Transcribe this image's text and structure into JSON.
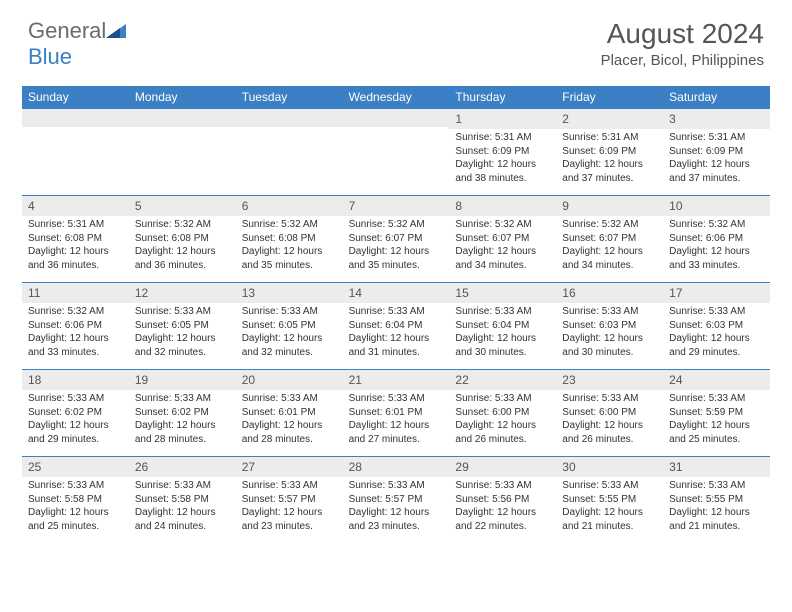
{
  "logo": {
    "text_a": "General",
    "text_b": "Blue"
  },
  "title": "August 2024",
  "location": "Placer, Bicol, Philippines",
  "colors": {
    "header_bg": "#3b7fc4",
    "header_text": "#ffffff",
    "daynum_bg": "#ececec",
    "border": "#3b7fc4",
    "text": "#333333",
    "title_text": "#555555"
  },
  "weekdays": [
    "Sunday",
    "Monday",
    "Tuesday",
    "Wednesday",
    "Thursday",
    "Friday",
    "Saturday"
  ],
  "weeks": [
    [
      {
        "n": "",
        "sr": "",
        "ss": "",
        "dl": ""
      },
      {
        "n": "",
        "sr": "",
        "ss": "",
        "dl": ""
      },
      {
        "n": "",
        "sr": "",
        "ss": "",
        "dl": ""
      },
      {
        "n": "",
        "sr": "",
        "ss": "",
        "dl": ""
      },
      {
        "n": "1",
        "sr": "5:31 AM",
        "ss": "6:09 PM",
        "dl": "12 hours and 38 minutes."
      },
      {
        "n": "2",
        "sr": "5:31 AM",
        "ss": "6:09 PM",
        "dl": "12 hours and 37 minutes."
      },
      {
        "n": "3",
        "sr": "5:31 AM",
        "ss": "6:09 PM",
        "dl": "12 hours and 37 minutes."
      }
    ],
    [
      {
        "n": "4",
        "sr": "5:31 AM",
        "ss": "6:08 PM",
        "dl": "12 hours and 36 minutes."
      },
      {
        "n": "5",
        "sr": "5:32 AM",
        "ss": "6:08 PM",
        "dl": "12 hours and 36 minutes."
      },
      {
        "n": "6",
        "sr": "5:32 AM",
        "ss": "6:08 PM",
        "dl": "12 hours and 35 minutes."
      },
      {
        "n": "7",
        "sr": "5:32 AM",
        "ss": "6:07 PM",
        "dl": "12 hours and 35 minutes."
      },
      {
        "n": "8",
        "sr": "5:32 AM",
        "ss": "6:07 PM",
        "dl": "12 hours and 34 minutes."
      },
      {
        "n": "9",
        "sr": "5:32 AM",
        "ss": "6:07 PM",
        "dl": "12 hours and 34 minutes."
      },
      {
        "n": "10",
        "sr": "5:32 AM",
        "ss": "6:06 PM",
        "dl": "12 hours and 33 minutes."
      }
    ],
    [
      {
        "n": "11",
        "sr": "5:32 AM",
        "ss": "6:06 PM",
        "dl": "12 hours and 33 minutes."
      },
      {
        "n": "12",
        "sr": "5:33 AM",
        "ss": "6:05 PM",
        "dl": "12 hours and 32 minutes."
      },
      {
        "n": "13",
        "sr": "5:33 AM",
        "ss": "6:05 PM",
        "dl": "12 hours and 32 minutes."
      },
      {
        "n": "14",
        "sr": "5:33 AM",
        "ss": "6:04 PM",
        "dl": "12 hours and 31 minutes."
      },
      {
        "n": "15",
        "sr": "5:33 AM",
        "ss": "6:04 PM",
        "dl": "12 hours and 30 minutes."
      },
      {
        "n": "16",
        "sr": "5:33 AM",
        "ss": "6:03 PM",
        "dl": "12 hours and 30 minutes."
      },
      {
        "n": "17",
        "sr": "5:33 AM",
        "ss": "6:03 PM",
        "dl": "12 hours and 29 minutes."
      }
    ],
    [
      {
        "n": "18",
        "sr": "5:33 AM",
        "ss": "6:02 PM",
        "dl": "12 hours and 29 minutes."
      },
      {
        "n": "19",
        "sr": "5:33 AM",
        "ss": "6:02 PM",
        "dl": "12 hours and 28 minutes."
      },
      {
        "n": "20",
        "sr": "5:33 AM",
        "ss": "6:01 PM",
        "dl": "12 hours and 28 minutes."
      },
      {
        "n": "21",
        "sr": "5:33 AM",
        "ss": "6:01 PM",
        "dl": "12 hours and 27 minutes."
      },
      {
        "n": "22",
        "sr": "5:33 AM",
        "ss": "6:00 PM",
        "dl": "12 hours and 26 minutes."
      },
      {
        "n": "23",
        "sr": "5:33 AM",
        "ss": "6:00 PM",
        "dl": "12 hours and 26 minutes."
      },
      {
        "n": "24",
        "sr": "5:33 AM",
        "ss": "5:59 PM",
        "dl": "12 hours and 25 minutes."
      }
    ],
    [
      {
        "n": "25",
        "sr": "5:33 AM",
        "ss": "5:58 PM",
        "dl": "12 hours and 25 minutes."
      },
      {
        "n": "26",
        "sr": "5:33 AM",
        "ss": "5:58 PM",
        "dl": "12 hours and 24 minutes."
      },
      {
        "n": "27",
        "sr": "5:33 AM",
        "ss": "5:57 PM",
        "dl": "12 hours and 23 minutes."
      },
      {
        "n": "28",
        "sr": "5:33 AM",
        "ss": "5:57 PM",
        "dl": "12 hours and 23 minutes."
      },
      {
        "n": "29",
        "sr": "5:33 AM",
        "ss": "5:56 PM",
        "dl": "12 hours and 22 minutes."
      },
      {
        "n": "30",
        "sr": "5:33 AM",
        "ss": "5:55 PM",
        "dl": "12 hours and 21 minutes."
      },
      {
        "n": "31",
        "sr": "5:33 AM",
        "ss": "5:55 PM",
        "dl": "12 hours and 21 minutes."
      }
    ]
  ],
  "labels": {
    "sunrise": "Sunrise:",
    "sunset": "Sunset:",
    "daylight": "Daylight:"
  }
}
